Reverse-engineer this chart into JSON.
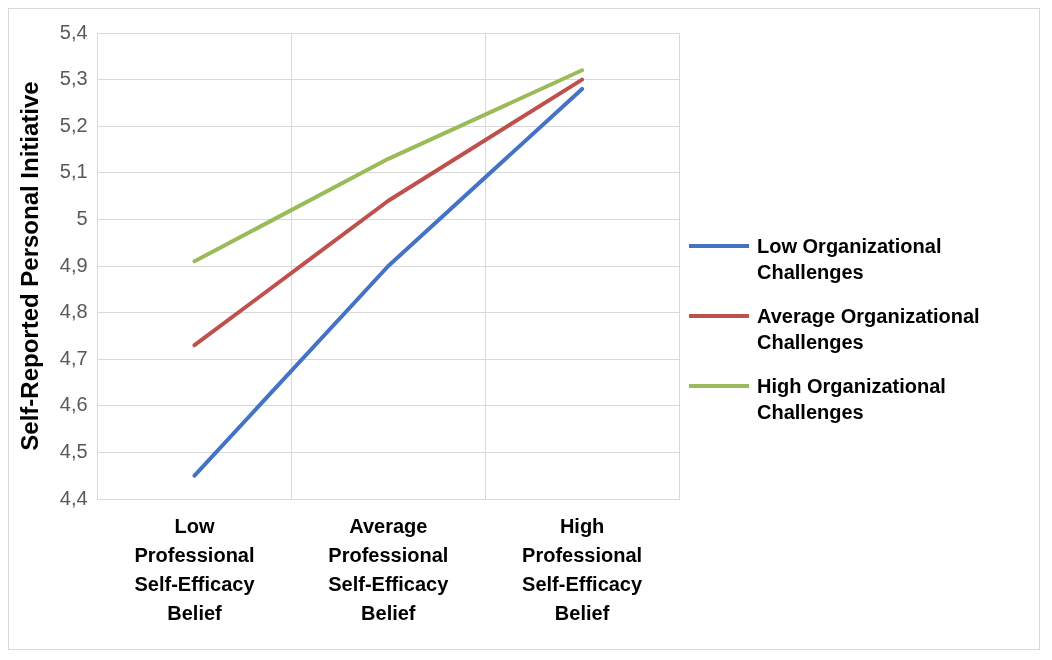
{
  "chart_data": {
    "type": "line",
    "ylabel": "Self-Reported Personal Initiative",
    "categories": [
      "Low Professional Self-Efficacy Belief",
      "Average Professional Self-Efficacy Belief",
      "High Professional Self-Efficacy Belief"
    ],
    "series": [
      {
        "name": "Low Organizational Challenges",
        "color": "#4472c4",
        "values": [
          4.45,
          4.9,
          5.28
        ]
      },
      {
        "name": "Average Organizational Challenges",
        "color": "#c0504d",
        "values": [
          4.73,
          5.04,
          5.3
        ]
      },
      {
        "name": "High Organizational Challenges",
        "color": "#9bbb59",
        "values": [
          4.91,
          5.13,
          5.32
        ]
      }
    ],
    "ylim": [
      4.4,
      5.4
    ],
    "yticks": [
      {
        "value": 4.4,
        "label": "4,4"
      },
      {
        "value": 4.5,
        "label": "4,5"
      },
      {
        "value": 4.6,
        "label": "4,6"
      },
      {
        "value": 4.7,
        "label": "4,7"
      },
      {
        "value": 4.8,
        "label": "4,8"
      },
      {
        "value": 4.9,
        "label": "4,9"
      },
      5,
      {
        "value": 5.1,
        "label": "5,1"
      },
      {
        "value": 5.2,
        "label": "5,2"
      },
      {
        "value": 5.3,
        "label": "5,3"
      },
      {
        "value": 5.4,
        "label": "5,4"
      }
    ],
    "grid": true,
    "legend": "right",
    "marker": "none",
    "line_style": "solid"
  }
}
